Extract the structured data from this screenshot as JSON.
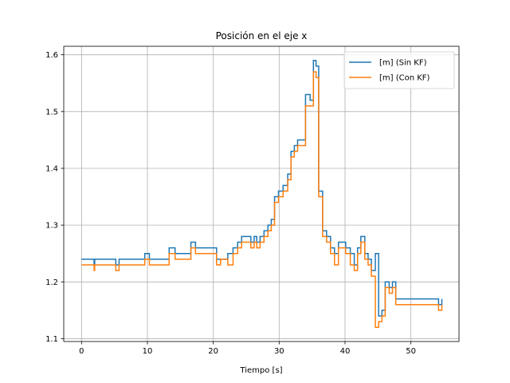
{
  "chart_data": {
    "type": "line",
    "title": "Posición en el eje x",
    "xlabel": "Tiempo [s]",
    "ylabel": "",
    "xlim": [
      -2.7,
      57.3
    ],
    "ylim": [
      1.095,
      1.615
    ],
    "xticks": [
      0,
      10,
      20,
      30,
      40,
      50
    ],
    "yticks": [
      1.1,
      1.2,
      1.3,
      1.4,
      1.5,
      1.6
    ],
    "xtick_labels": [
      "0",
      "10",
      "20",
      "30",
      "40",
      "50"
    ],
    "ytick_labels": [
      "1.1",
      "1.2",
      "1.3",
      "1.4",
      "1.5",
      "1.6"
    ],
    "grid": true,
    "legend_position": "top-right",
    "step": "post",
    "series": [
      {
        "name": "[m] (Sin KF)",
        "color": "#1f77b4",
        "x": [
          0,
          1.9,
          2.0,
          5.2,
          5.7,
          9.6,
          10.3,
          13.3,
          14.2,
          16.6,
          17.3,
          20.5,
          22.2,
          23.0,
          23.7,
          24.3,
          25.7,
          26.2,
          26.6,
          27.1,
          27.7,
          28.3,
          28.8,
          29.3,
          29.9,
          30.6,
          31.3,
          31.8,
          32.3,
          32.8,
          34.0,
          34.7,
          35.2,
          35.6,
          36.0,
          36.6,
          37.2,
          37.8,
          38.4,
          39.0,
          39.5,
          40.1,
          40.8,
          41.4,
          41.9,
          42.4,
          43.0,
          43.5,
          44.0,
          44.6,
          45.1,
          45.6,
          46.1,
          46.7,
          47.2,
          47.7,
          48.3,
          54.2,
          54.7
        ],
        "y": [
          1.24,
          1.23,
          1.24,
          1.23,
          1.24,
          1.25,
          1.24,
          1.26,
          1.25,
          1.27,
          1.26,
          1.24,
          1.25,
          1.26,
          1.27,
          1.28,
          1.27,
          1.28,
          1.27,
          1.28,
          1.29,
          1.3,
          1.31,
          1.35,
          1.36,
          1.37,
          1.39,
          1.43,
          1.44,
          1.45,
          1.53,
          1.52,
          1.59,
          1.58,
          1.36,
          1.29,
          1.28,
          1.26,
          1.25,
          1.27,
          1.27,
          1.26,
          1.25,
          1.23,
          1.26,
          1.28,
          1.25,
          1.24,
          1.22,
          1.25,
          1.14,
          1.15,
          1.2,
          1.19,
          1.2,
          1.17,
          1.17,
          1.16,
          1.17
        ]
      },
      {
        "name": "[m] (Con KF)",
        "color": "#ff7f0e",
        "x": [
          0,
          1.9,
          2.0,
          5.2,
          5.7,
          9.6,
          10.3,
          13.3,
          14.2,
          16.6,
          17.3,
          20.5,
          21.1,
          22.2,
          23.0,
          23.7,
          24.3,
          25.7,
          26.2,
          26.6,
          27.1,
          27.7,
          28.3,
          28.8,
          29.3,
          29.9,
          30.6,
          31.3,
          31.8,
          32.3,
          32.8,
          34.0,
          34.7,
          35.2,
          35.6,
          36.0,
          36.6,
          37.2,
          37.8,
          38.4,
          39.0,
          39.5,
          40.1,
          40.8,
          41.4,
          41.9,
          42.4,
          43.0,
          43.5,
          44.0,
          44.6,
          45.1,
          45.6,
          46.1,
          46.7,
          47.2,
          47.7,
          48.3,
          54.2,
          54.7
        ],
        "y": [
          1.23,
          1.22,
          1.23,
          1.22,
          1.23,
          1.24,
          1.23,
          1.25,
          1.24,
          1.26,
          1.25,
          1.23,
          1.24,
          1.23,
          1.25,
          1.26,
          1.27,
          1.26,
          1.27,
          1.26,
          1.27,
          1.28,
          1.29,
          1.3,
          1.34,
          1.35,
          1.36,
          1.38,
          1.42,
          1.43,
          1.44,
          1.51,
          1.51,
          1.57,
          1.56,
          1.35,
          1.28,
          1.27,
          1.25,
          1.23,
          1.26,
          1.26,
          1.25,
          1.23,
          1.22,
          1.25,
          1.27,
          1.24,
          1.23,
          1.21,
          1.12,
          1.13,
          1.14,
          1.19,
          1.18,
          1.19,
          1.16,
          1.16,
          1.15,
          1.16
        ]
      }
    ]
  }
}
